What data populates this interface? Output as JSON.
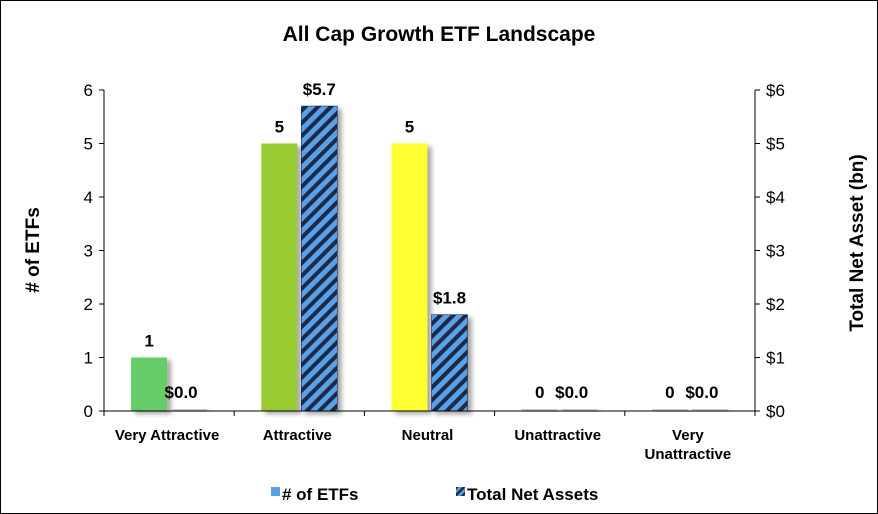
{
  "chart_data": {
    "type": "bar",
    "title": "All Cap Growth ETF Landscape",
    "categories": [
      [
        "Very Attractive"
      ],
      [
        "Attractive"
      ],
      [
        "Neutral"
      ],
      [
        "Unattractive"
      ],
      [
        "Very",
        "Unattractive"
      ]
    ],
    "left_axis": {
      "label": "# of ETFs",
      "ylim": [
        0,
        6
      ],
      "ticks": [
        "0",
        "1",
        "2",
        "3",
        "4",
        "5",
        "6"
      ]
    },
    "right_axis": {
      "label": "Total Net Asset (bn)",
      "ylim": [
        0,
        6
      ],
      "ticks": [
        "$0",
        "$1",
        "$2",
        "$3",
        "$4",
        "$5",
        "$6"
      ]
    },
    "series": [
      {
        "name": "# of ETFs",
        "axis": "left",
        "values": [
          1,
          5,
          5,
          0,
          0
        ],
        "data_labels": [
          "1",
          "5",
          "5",
          "0",
          "0"
        ],
        "colors": [
          "#66cc66",
          "#99cc33",
          "#ffff33",
          "#cccccc",
          "#cccccc"
        ],
        "legend_color": "#5aa0e6"
      },
      {
        "name": "Total Net Assets",
        "axis": "right",
        "values": [
          0.0,
          5.7,
          1.8,
          0.0,
          0.0
        ],
        "data_labels": [
          "$0.0",
          "$5.7",
          "$1.8",
          "$0.0",
          "$0.0"
        ],
        "pattern": "diagonal-stripes",
        "stripe_colors": [
          "#1a2b4a",
          "#5aa0e6"
        ]
      }
    ],
    "legend": "bottom",
    "grid": false
  }
}
